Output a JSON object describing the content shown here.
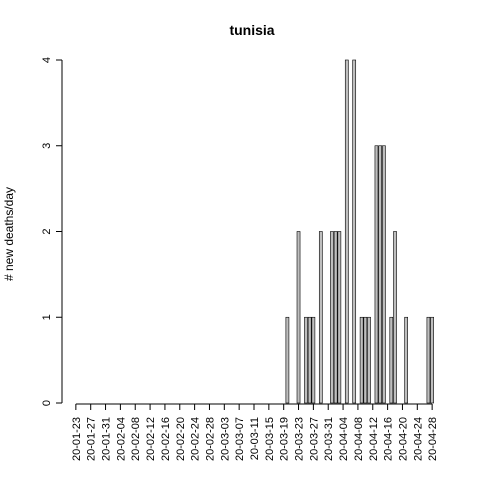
{
  "chart_data": {
    "type": "bar",
    "title": "tunisia",
    "xlabel": "",
    "ylabel": "# new deaths/day",
    "ylim": [
      0,
      4
    ],
    "y_ticks": [
      0,
      1,
      2,
      3,
      4
    ],
    "bar_fill": "#bebebe",
    "bar_stroke": "#000000",
    "start_date": "2020-01-23",
    "x_tick_labels": [
      "20-01-23",
      "20-01-27",
      "20-01-31",
      "20-02-04",
      "20-02-08",
      "20-02-12",
      "20-02-16",
      "20-02-20",
      "20-02-24",
      "20-02-28",
      "20-03-03",
      "20-03-07",
      "20-03-11",
      "20-03-15",
      "20-03-19",
      "20-03-23",
      "20-03-27",
      "20-03-31",
      "20-04-04",
      "20-04-08",
      "20-04-12",
      "20-04-16",
      "20-04-20",
      "20-04-24",
      "20-04-28"
    ],
    "values": [
      0,
      0,
      0,
      0,
      0,
      0,
      0,
      0,
      0,
      0,
      0,
      0,
      0,
      0,
      0,
      0,
      0,
      0,
      0,
      0,
      0,
      0,
      0,
      0,
      0,
      0,
      0,
      0,
      0,
      0,
      0,
      0,
      0,
      0,
      0,
      0,
      0,
      0,
      0,
      0,
      0,
      0,
      0,
      0,
      0,
      0,
      0,
      0,
      0,
      0,
      0,
      0,
      0,
      0,
      0,
      0,
      0,
      1,
      0,
      0,
      2,
      0,
      1,
      1,
      1,
      0,
      2,
      0,
      0,
      2,
      2,
      2,
      0,
      4,
      0,
      4,
      0,
      1,
      1,
      1,
      0,
      3,
      3,
      3,
      0,
      1,
      2,
      0,
      0,
      1,
      0,
      0,
      0,
      0,
      0,
      1,
      1
    ]
  }
}
